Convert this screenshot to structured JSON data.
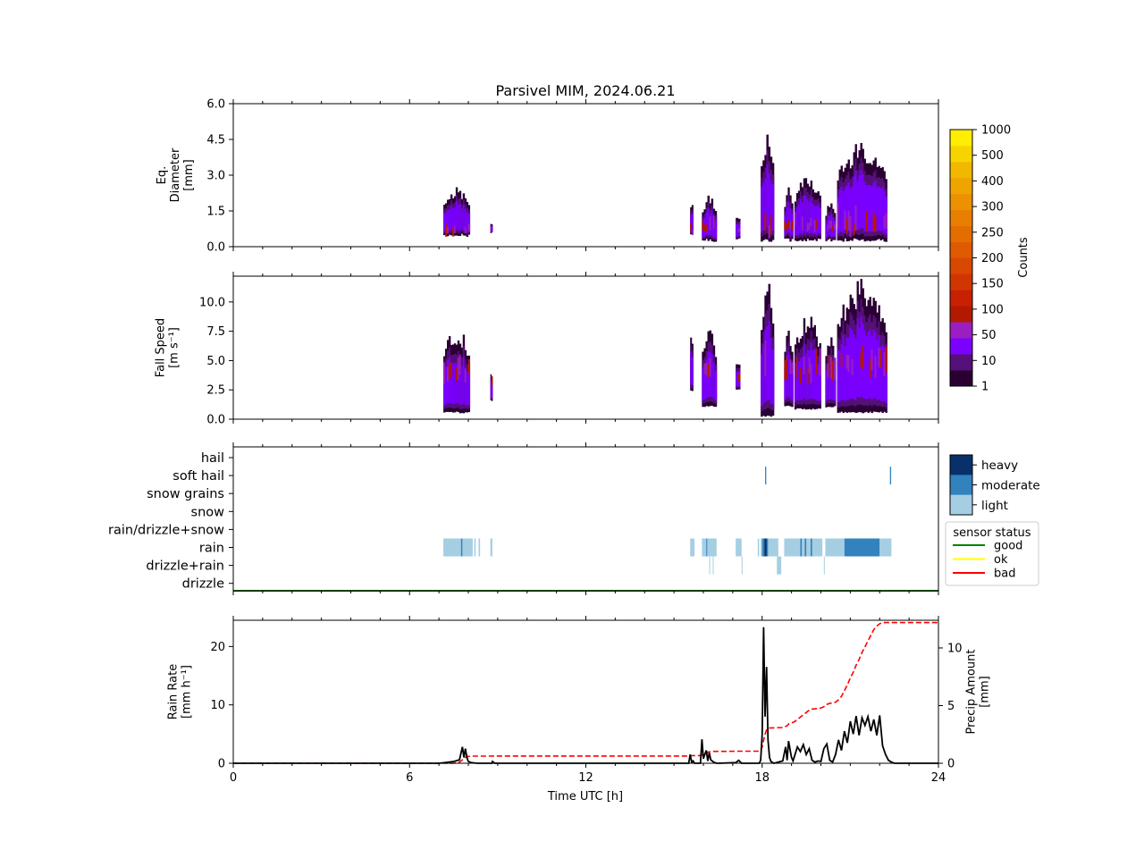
{
  "title": "Parsivel MIM, 2024.06.21",
  "x_axis": {
    "label": "Time UTC [h]",
    "ticks": [
      "0",
      "6",
      "12",
      "18",
      "24"
    ],
    "range": [
      0,
      24
    ]
  },
  "panels": {
    "diameter": {
      "ylabel_lines": [
        "Eq.",
        "Diameter",
        "[mm]"
      ],
      "ticks": [
        "0.0",
        "1.5",
        "3.0",
        "4.5",
        "6.0"
      ],
      "range": [
        0,
        6
      ]
    },
    "fallspeed": {
      "ylabel_lines": [
        "Fall Speed",
        "[m s⁻¹]"
      ],
      "ticks": [
        "0.0",
        "2.5",
        "5.0",
        "7.5",
        "10.0"
      ],
      "range": [
        0,
        12.2
      ]
    },
    "ptype": {
      "categories": [
        "hail",
        "soft hail",
        "snow grains",
        "snow",
        "rain/drizzle+snow",
        "rain",
        "drizzle+rain",
        "drizzle"
      ]
    },
    "rain": {
      "ylabel_lines": [
        "Rain Rate",
        "[mm h⁻¹]"
      ],
      "ticks": [
        "0",
        "10",
        "20"
      ],
      "range": [
        0,
        24.5
      ],
      "y2label_lines": [
        "Precip Amount",
        "[mm]"
      ],
      "y2_ticks": [
        "0",
        "5",
        "10"
      ],
      "y2_range": [
        0,
        12.4
      ]
    }
  },
  "colorbar": {
    "label": "Counts",
    "ticks": [
      "1",
      "10",
      "50",
      "100",
      "150",
      "200",
      "250",
      "300",
      "400",
      "500",
      "1000"
    ],
    "colors": [
      "#2a0033",
      "#55107a",
      "#7a00ff",
      "#9a1fc0",
      "#b21a00",
      "#c82000",
      "#d13500",
      "#d84800",
      "#df5a00",
      "#e46d00",
      "#e87f00",
      "#ec9200",
      "#efa500",
      "#f2b800",
      "#f7d400",
      "#ffee00"
    ]
  },
  "intensity_legend": {
    "items": [
      {
        "label": "heavy",
        "color": "#08306b"
      },
      {
        "label": "moderate",
        "color": "#3182bd"
      },
      {
        "label": "light",
        "color": "#a6cee3"
      }
    ]
  },
  "sensor_legend": {
    "title": "sensor status",
    "items": [
      {
        "label": "good",
        "color": "#008000"
      },
      {
        "label": "ok",
        "color": "#ffff00"
      },
      {
        "label": "bad",
        "color": "#ff0000"
      }
    ]
  },
  "chart_data": [
    {
      "type": "heatmap",
      "name": "diameter",
      "xlabel": "",
      "ylabel": "Eq. Diameter [mm]",
      "xlim": [
        0,
        24
      ],
      "ylim": [
        0,
        6
      ],
      "blobs": [
        {
          "t0": 7.15,
          "t1": 8.05,
          "ymin": 0.4,
          "ymax": 2.5,
          "core": [
            0.4,
            1.2
          ]
        },
        {
          "t0": 8.75,
          "t1": 8.82,
          "ymin": 0.5,
          "ymax": 1.2,
          "core": [
            0.6,
            1.0
          ]
        },
        {
          "t0": 15.55,
          "t1": 15.65,
          "ymin": 0.4,
          "ymax": 2.4,
          "core": [
            0.5,
            1.0
          ]
        },
        {
          "t0": 15.95,
          "t1": 16.45,
          "ymin": 0.2,
          "ymax": 2.2,
          "core": [
            0.5,
            1.4
          ]
        },
        {
          "t0": 17.1,
          "t1": 17.25,
          "ymin": 0.3,
          "ymax": 1.7,
          "core": [
            0.6,
            1.0
          ]
        },
        {
          "t0": 17.95,
          "t1": 18.4,
          "ymin": 0.2,
          "ymax": 5.0,
          "core": [
            0.3,
            2.0
          ]
        },
        {
          "t0": 18.75,
          "t1": 19.05,
          "ymin": 0.2,
          "ymax": 2.6,
          "core": [
            0.6,
            1.2
          ]
        },
        {
          "t0": 19.1,
          "t1": 20.0,
          "ymin": 0.2,
          "ymax": 3.0,
          "core": [
            0.6,
            1.6
          ]
        },
        {
          "t0": 20.15,
          "t1": 20.5,
          "ymin": 0.2,
          "ymax": 2.0,
          "core": [
            0.6,
            1.2
          ]
        },
        {
          "t0": 20.55,
          "t1": 22.25,
          "ymin": 0.2,
          "ymax": 4.4,
          "core": [
            0.4,
            2.0
          ]
        }
      ]
    },
    {
      "type": "heatmap",
      "name": "fall speed",
      "xlabel": "",
      "ylabel": "Fall Speed [m s⁻¹]",
      "xlim": [
        0,
        24
      ],
      "ylim": [
        0,
        12.2
      ],
      "blobs": [
        {
          "t0": 7.15,
          "t1": 8.05,
          "ymin": 0.5,
          "ymax": 8.0,
          "core": [
            3.0,
            6.0
          ]
        },
        {
          "t0": 8.75,
          "t1": 8.82,
          "ymin": 1.5,
          "ymax": 5.0,
          "core": [
            2.5,
            4.0
          ]
        },
        {
          "t0": 15.55,
          "t1": 15.65,
          "ymin": 2.3,
          "ymax": 9.0,
          "core": [
            3.0,
            6.0
          ]
        },
        {
          "t0": 15.95,
          "t1": 16.45,
          "ymin": 1.0,
          "ymax": 8.0,
          "core": [
            3.0,
            6.0
          ]
        },
        {
          "t0": 17.1,
          "t1": 17.25,
          "ymin": 2.5,
          "ymax": 6.0,
          "core": [
            3.0,
            5.0
          ]
        },
        {
          "t0": 17.95,
          "t1": 18.4,
          "ymin": 0.2,
          "ymax": 12.2,
          "core": [
            2.5,
            7.0
          ]
        },
        {
          "t0": 18.75,
          "t1": 19.05,
          "ymin": 1.0,
          "ymax": 8.0,
          "core": [
            3.0,
            6.0
          ]
        },
        {
          "t0": 19.1,
          "t1": 20.0,
          "ymin": 0.8,
          "ymax": 9.0,
          "core": [
            3.0,
            6.5
          ]
        },
        {
          "t0": 20.15,
          "t1": 20.5,
          "ymin": 1.0,
          "ymax": 7.5,
          "core": [
            3.0,
            6.0
          ]
        },
        {
          "t0": 20.55,
          "t1": 22.25,
          "ymin": 0.5,
          "ymax": 12.0,
          "core": [
            3.5,
            7.0
          ]
        }
      ]
    },
    {
      "type": "heatmap",
      "name": "precipitation type",
      "xlim": [
        0,
        24
      ],
      "segments": [
        {
          "cat": "rain",
          "t0": 7.15,
          "t1": 7.75,
          "level": "light"
        },
        {
          "cat": "rain",
          "t0": 7.75,
          "t1": 7.8,
          "level": "moderate"
        },
        {
          "cat": "rain",
          "t0": 7.8,
          "t1": 8.15,
          "level": "light"
        },
        {
          "cat": "rain",
          "t0": 8.2,
          "t1": 8.25,
          "level": "light"
        },
        {
          "cat": "rain",
          "t0": 8.35,
          "t1": 8.4,
          "level": "light"
        },
        {
          "cat": "rain",
          "t0": 8.75,
          "t1": 8.82,
          "level": "light"
        },
        {
          "cat": "rain",
          "t0": 15.55,
          "t1": 15.7,
          "level": "light"
        },
        {
          "cat": "rain",
          "t0": 15.95,
          "t1": 16.45,
          "level": "light"
        },
        {
          "cat": "rain",
          "t0": 16.1,
          "t1": 16.13,
          "level": "moderate"
        },
        {
          "cat": "rain",
          "t0": 17.1,
          "t1": 17.3,
          "level": "light"
        },
        {
          "cat": "rain",
          "t0": 17.85,
          "t1": 17.9,
          "level": "light"
        },
        {
          "cat": "rain",
          "t0": 17.95,
          "t1": 18.55,
          "level": "light"
        },
        {
          "cat": "rain",
          "t0": 18.0,
          "t1": 18.2,
          "level": "moderate"
        },
        {
          "cat": "rain",
          "t0": 18.08,
          "t1": 18.15,
          "level": "heavy"
        },
        {
          "cat": "rain",
          "t0": 18.75,
          "t1": 20.05,
          "level": "light"
        },
        {
          "cat": "rain",
          "t0": 19.3,
          "t1": 19.35,
          "level": "moderate"
        },
        {
          "cat": "rain",
          "t0": 19.45,
          "t1": 19.5,
          "level": "moderate"
        },
        {
          "cat": "rain",
          "t0": 19.65,
          "t1": 19.7,
          "level": "moderate"
        },
        {
          "cat": "rain",
          "t0": 20.15,
          "t1": 20.8,
          "level": "light"
        },
        {
          "cat": "rain",
          "t0": 20.8,
          "t1": 22.0,
          "level": "moderate"
        },
        {
          "cat": "rain",
          "t0": 22.0,
          "t1": 22.4,
          "level": "light"
        },
        {
          "cat": "drizzle+rain",
          "t0": 16.2,
          "t1": 16.23,
          "level": "light"
        },
        {
          "cat": "drizzle+rain",
          "t0": 16.32,
          "t1": 16.35,
          "level": "light"
        },
        {
          "cat": "drizzle+rain",
          "t0": 17.3,
          "t1": 17.33,
          "level": "light"
        },
        {
          "cat": "drizzle+rain",
          "t0": 18.5,
          "t1": 18.65,
          "level": "light"
        },
        {
          "cat": "drizzle+rain",
          "t0": 20.1,
          "t1": 20.13,
          "level": "light"
        },
        {
          "cat": "soft hail",
          "t0": 18.1,
          "t1": 18.14,
          "level": "moderate"
        },
        {
          "cat": "soft hail",
          "t0": 22.35,
          "t1": 22.39,
          "level": "moderate"
        }
      ],
      "sensor_status": "good"
    },
    {
      "type": "line",
      "name": "rain rate",
      "xlabel": "Time UTC [h]",
      "ylabel": "Rain Rate [mm h⁻¹]",
      "xlim": [
        0,
        24
      ],
      "ylim": [
        0,
        24.5
      ],
      "x": [
        0,
        7.0,
        7.2,
        7.5,
        7.7,
        7.8,
        7.85,
        7.9,
        7.95,
        8.0,
        8.1,
        8.3,
        8.8,
        8.82,
        8.9,
        15.5,
        15.55,
        15.6,
        15.65,
        15.7,
        15.9,
        15.95,
        16.0,
        16.05,
        16.1,
        16.15,
        16.2,
        16.25,
        16.35,
        16.45,
        16.5,
        17.1,
        17.2,
        17.3,
        17.9,
        17.95,
        18.0,
        18.05,
        18.1,
        18.15,
        18.2,
        18.25,
        18.3,
        18.4,
        18.7,
        18.8,
        18.85,
        18.9,
        19.0,
        19.05,
        19.1,
        19.2,
        19.3,
        19.4,
        19.5,
        19.6,
        19.7,
        19.8,
        19.9,
        20.0,
        20.1,
        20.2,
        20.3,
        20.4,
        20.5,
        20.6,
        20.7,
        20.8,
        20.9,
        21.0,
        21.1,
        21.2,
        21.3,
        21.4,
        21.5,
        21.6,
        21.7,
        21.8,
        21.9,
        22.0,
        22.1,
        22.2,
        22.3,
        22.4,
        22.5,
        24
      ],
      "series": [],
      "rain_rate": [
        0,
        0,
        0.1,
        0.3,
        0.6,
        2.8,
        1.0,
        2.5,
        1.0,
        0.3,
        0.1,
        0,
        0,
        0.3,
        0,
        0,
        1.5,
        0.2,
        0.4,
        0,
        0,
        4.1,
        0.8,
        1.5,
        2.2,
        0.4,
        1.8,
        0.6,
        0.2,
        0,
        0,
        0.1,
        0.5,
        0,
        0,
        0.5,
        5.0,
        23.3,
        8.0,
        16.5,
        4.0,
        1.0,
        0.3,
        0,
        0.4,
        2.8,
        0.5,
        3.8,
        1.0,
        0.4,
        1.2,
        2.8,
        2.0,
        3.2,
        1.5,
        2.5,
        0.5,
        0.2,
        0.4,
        0.3,
        2.5,
        3.3,
        0.5,
        0.2,
        1.5,
        4.0,
        2.2,
        5.5,
        3.5,
        7.2,
        5.0,
        8.1,
        4.8,
        7.8,
        6.5,
        8.0,
        5.5,
        7.5,
        4.8,
        8.2,
        3.0,
        1.5,
        0.5,
        0.2,
        0,
        0
      ],
      "precip_amount": [
        0,
        0,
        0,
        0,
        0.1,
        0.3,
        0.4,
        0.5,
        0.55,
        0.6,
        0.62,
        0.62,
        0.62,
        0.63,
        0.63,
        0.63,
        0.65,
        0.66,
        0.67,
        0.67,
        0.67,
        0.72,
        0.78,
        0.84,
        0.9,
        0.95,
        1.0,
        1.02,
        1.03,
        1.03,
        1.03,
        1.04,
        1.05,
        1.05,
        1.05,
        1.1,
        1.4,
        2.0,
        2.5,
        2.9,
        3.0,
        3.05,
        3.07,
        3.07,
        3.1,
        3.2,
        3.25,
        3.4,
        3.5,
        3.55,
        3.6,
        3.8,
        4.0,
        4.2,
        4.4,
        4.6,
        4.7,
        4.72,
        4.75,
        4.8,
        4.9,
        5.1,
        5.2,
        5.22,
        5.3,
        5.5,
        5.8,
        6.3,
        6.8,
        7.4,
        7.9,
        8.5,
        9.0,
        9.6,
        10.1,
        10.6,
        11.1,
        11.6,
        11.9,
        12.1,
        12.2,
        12.2,
        12.2,
        12.2,
        12.2,
        12.2
      ]
    }
  ]
}
